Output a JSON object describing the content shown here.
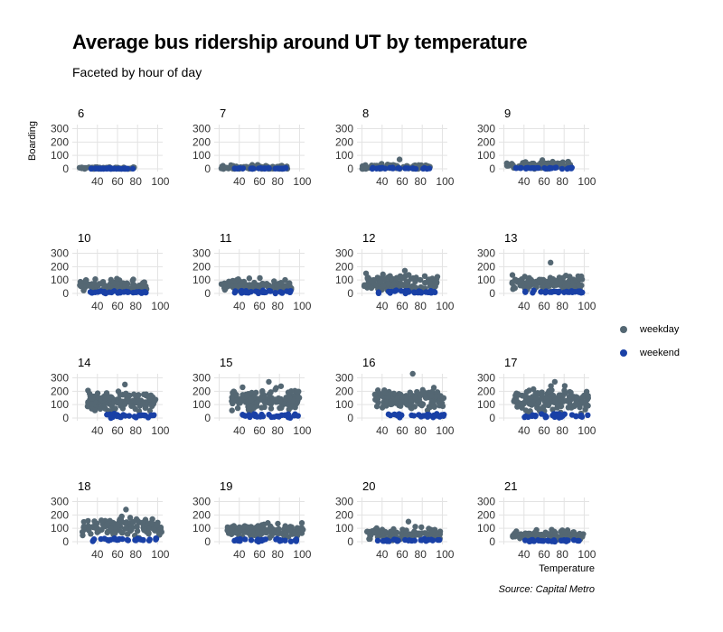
{
  "title": "Average bus ridership around UT by temperature",
  "subtitle": "Faceted by hour of day",
  "source": "Source: Capital Metro",
  "chart_data": {
    "type": "scatter",
    "title": "Average bus ridership around UT by temperature",
    "subtitle": "Faceted by hour of day",
    "xlabel": "Temperature",
    "ylabel": "Boarding",
    "xlim": [
      15,
      105
    ],
    "ylim": [
      -20,
      330
    ],
    "x_ticks": [
      "40",
      "60",
      "80",
      "100"
    ],
    "y_ticks": [
      "0",
      "100",
      "200",
      "300"
    ],
    "grid": true,
    "legend_position": "right",
    "series": [
      {
        "name": "weekday",
        "color": "#546773"
      },
      {
        "name": "weekend",
        "color": "#1940a6"
      }
    ],
    "facets": [
      {
        "hour": "6",
        "temp_range": [
          22,
          77
        ],
        "weekday": {
          "mean": 5,
          "spread": 6,
          "max": 12
        },
        "weekend": {
          "mean": 2,
          "spread": 3,
          "max": 6
        }
      },
      {
        "hour": "7",
        "temp_range": [
          22,
          88
        ],
        "weekday": {
          "mean": 10,
          "spread": 12,
          "max": 30
        },
        "weekend": {
          "mean": 3,
          "spread": 4,
          "max": 8
        }
      },
      {
        "hour": "8",
        "temp_range": [
          20,
          88
        ],
        "weekday": {
          "mean": 15,
          "spread": 15,
          "max": 70
        },
        "weekend": {
          "mean": 4,
          "spread": 5,
          "max": 10
        }
      },
      {
        "hour": "9",
        "temp_range": [
          22,
          88
        ],
        "weekday": {
          "mean": 28,
          "spread": 20,
          "max": 65
        },
        "weekend": {
          "mean": 5,
          "spread": 5,
          "max": 12
        }
      },
      {
        "hour": "10",
        "temp_range": [
          22,
          90
        ],
        "weekday": {
          "mean": 55,
          "spread": 30,
          "max": 110
        },
        "weekend": {
          "mean": 8,
          "spread": 8,
          "max": 20
        }
      },
      {
        "hour": "11",
        "temp_range": [
          22,
          92
        ],
        "weekday": {
          "mean": 60,
          "spread": 30,
          "max": 115
        },
        "weekend": {
          "mean": 10,
          "spread": 10,
          "max": 25
        }
      },
      {
        "hour": "12",
        "temp_range": [
          22,
          96
        ],
        "weekday": {
          "mean": 80,
          "spread": 40,
          "max": 170
        },
        "weekend": {
          "mean": 12,
          "spread": 10,
          "max": 30
        }
      },
      {
        "hour": "13",
        "temp_range": [
          28,
          98
        ],
        "weekday": {
          "mean": 80,
          "spread": 45,
          "max": 230
        },
        "weekend": {
          "mean": 12,
          "spread": 10,
          "max": 30
        }
      },
      {
        "hour": "14",
        "temp_range": [
          30,
          98
        ],
        "weekday": {
          "mean": 125,
          "spread": 50,
          "max": 250
        },
        "weekend": {
          "mean": 15,
          "spread": 12,
          "max": 35
        }
      },
      {
        "hour": "15",
        "temp_range": [
          32,
          100
        ],
        "weekday": {
          "mean": 140,
          "spread": 50,
          "max": 270
        },
        "weekend": {
          "mean": 18,
          "spread": 15,
          "max": 45
        }
      },
      {
        "hour": "16",
        "temp_range": [
          32,
          102
        ],
        "weekday": {
          "mean": 140,
          "spread": 50,
          "max": 330
        },
        "weekend": {
          "mean": 18,
          "spread": 15,
          "max": 45
        }
      },
      {
        "hour": "17",
        "temp_range": [
          30,
          104
        ],
        "weekday": {
          "mean": 130,
          "spread": 55,
          "max": 270
        },
        "weekend": {
          "mean": 18,
          "spread": 15,
          "max": 45
        }
      },
      {
        "hour": "18",
        "temp_range": [
          25,
          104
        ],
        "weekday": {
          "mean": 110,
          "spread": 50,
          "max": 240
        },
        "weekend": {
          "mean": 15,
          "spread": 12,
          "max": 40
        }
      },
      {
        "hour": "19",
        "temp_range": [
          25,
          104
        ],
        "weekday": {
          "mean": 85,
          "spread": 35,
          "max": 140
        },
        "weekend": {
          "mean": 12,
          "spread": 10,
          "max": 30
        }
      },
      {
        "hour": "20",
        "temp_range": [
          25,
          100
        ],
        "weekday": {
          "mean": 55,
          "spread": 30,
          "max": 150
        },
        "weekend": {
          "mean": 10,
          "spread": 8,
          "max": 25
        }
      },
      {
        "hour": "21",
        "temp_range": [
          28,
          100
        ],
        "weekday": {
          "mean": 50,
          "spread": 25,
          "max": 90
        },
        "weekend": {
          "mean": 8,
          "spread": 8,
          "max": 20
        }
      }
    ]
  }
}
